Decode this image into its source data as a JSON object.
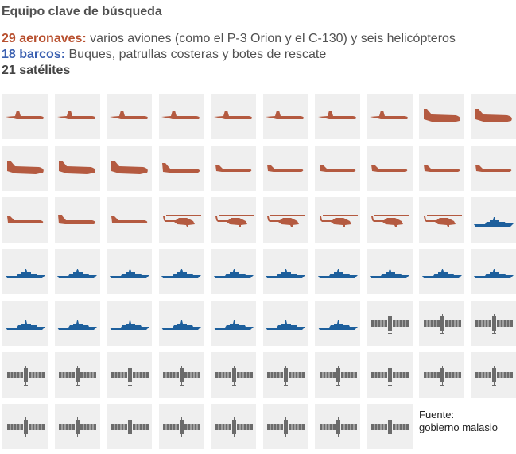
{
  "title": "Equipo clave de búsqueda",
  "legend": [
    {
      "count_label": "29 aeronaves:",
      "description": " varios aviones (como el P-3 Orion y el C-130) y seis helicópteros",
      "color": "#b8502f"
    },
    {
      "count_label": "18 barcos:",
      "description": " Buques, patrullas costeras y botes de rescate",
      "color": "#3a5fb0"
    },
    {
      "count_label": "21 satélites",
      "description": "",
      "color": "#444444"
    }
  ],
  "colors": {
    "aircraft": "#b45a40",
    "ship": "#1d5f9c",
    "satellite": "#6b6b6b",
    "tile": "#efefef"
  },
  "tiles": [
    "turboprop",
    "turboprop",
    "turboprop",
    "turboprop",
    "turboprop",
    "turboprop",
    "turboprop",
    "turboprop",
    "cargo",
    "cargo",
    "cargo",
    "cargo",
    "cargo",
    "widejet",
    "jet",
    "jet",
    "jet",
    "jet",
    "jet",
    "jet",
    "jet",
    "widejet",
    "jet",
    "helicopter",
    "helicopter",
    "helicopter",
    "helicopter",
    "helicopter",
    "helicopter",
    "ship",
    "ship",
    "ship",
    "ship",
    "ship",
    "ship",
    "ship",
    "ship",
    "ship",
    "ship",
    "ship",
    "ship",
    "ship",
    "ship",
    "ship",
    "ship",
    "ship",
    "ship",
    "satellite",
    "satellite",
    "satellite",
    "satellite",
    "satellite",
    "satellite",
    "satellite",
    "satellite",
    "satellite",
    "satellite",
    "satellite",
    "satellite",
    "satellite",
    "satellite",
    "satellite",
    "satellite",
    "satellite",
    "satellite",
    "satellite",
    "satellite",
    "satellite"
  ],
  "source": {
    "label": "Fuente:",
    "value": "gobierno malasio"
  }
}
